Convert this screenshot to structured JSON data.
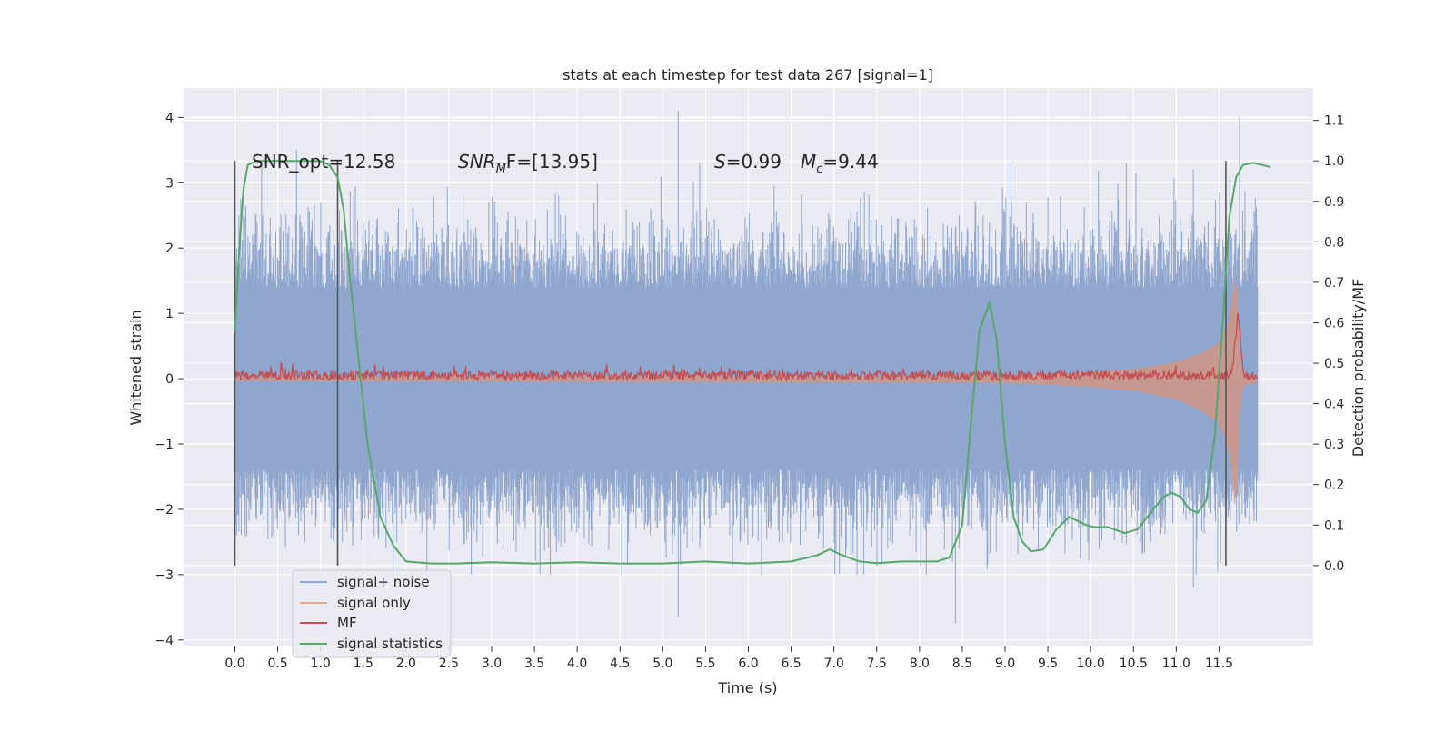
{
  "chart_data": {
    "type": "line",
    "title": "stats at each timestep for test data 267 [signal=1]",
    "xlabel": "Time (s)",
    "ylabel_left": "Whitened strain",
    "ylabel_right": "Detection probability/MF",
    "xlim": [
      -0.6,
      12.6
    ],
    "ylim_left": [
      -4.1,
      4.45
    ],
    "ylim_right": [
      -0.2,
      1.18
    ],
    "xticks": [
      "0.0",
      "0.5",
      "1.0",
      "1.5",
      "2.0",
      "2.5",
      "3.0",
      "3.5",
      "4.0",
      "4.5",
      "5.0",
      "5.5",
      "6.0",
      "6.5",
      "7.0",
      "7.5",
      "8.0",
      "8.5",
      "9.0",
      "9.5",
      "10.0",
      "10.5",
      "11.0",
      "11.5"
    ],
    "yticks_left": [
      "4",
      "3",
      "2",
      "1",
      "0",
      "−1",
      "−2",
      "−3",
      "−4"
    ],
    "yticks_right": [
      "1.1",
      "1.0",
      "0.9",
      "0.8",
      "0.7",
      "0.6",
      "0.5",
      "0.4",
      "0.3",
      "0.2",
      "0.1",
      "0.0"
    ],
    "grid": true,
    "legend_position": "lower-left",
    "annotations": {
      "snr_opt": "SNR_opt=12.58",
      "snr_mf_sym": "SNR",
      "snr_mf_sub": "M",
      "snr_mf_rest": "F=[13.95]",
      "s_sym": "S",
      "s_rest": "=0.99",
      "mc_sym": "M",
      "mc_sub": "c",
      "mc_rest": "=9.44"
    },
    "vertical_markers": [
      0.0,
      1.2,
      11.58
    ],
    "series": [
      {
        "name": "signal+ noise",
        "color": "#8fa6cf",
        "x_range": [
          0.0,
          11.95
        ],
        "band": [
          -1.4,
          1.4
        ],
        "extremes": [
          [
            0.72,
            3.5
          ],
          [
            5.18,
            4.1
          ],
          [
            11.74,
            4.0
          ],
          [
            5.18,
            -3.65
          ],
          [
            8.42,
            -3.75
          ],
          [
            11.2,
            -3.2
          ],
          [
            1.85,
            -3.0
          ]
        ]
      },
      {
        "name": "signal only",
        "color": "#dd8452",
        "x": [
          0.0,
          9.0,
          10.0,
          10.5,
          11.0,
          11.3,
          11.5,
          11.62,
          11.7,
          11.75,
          11.8,
          11.95
        ],
        "envelope": [
          0.03,
          0.05,
          0.1,
          0.15,
          0.25,
          0.4,
          0.55,
          0.9,
          1.7,
          0.2,
          0.08,
          0.05
        ]
      },
      {
        "name": "MF",
        "color": "#c44e52",
        "x_range": [
          0.0,
          11.95
        ],
        "baseline": 0.05,
        "amplitude": 0.14,
        "peak": [
          11.72,
          1.0
        ]
      },
      {
        "name": "signal statistics",
        "color": "#55a868",
        "x": [
          0.0,
          0.05,
          0.1,
          0.15,
          0.25,
          0.4,
          0.6,
          0.8,
          1.0,
          1.1,
          1.2,
          1.27,
          1.35,
          1.45,
          1.55,
          1.7,
          1.85,
          2.0,
          2.3,
          2.6,
          3.0,
          3.5,
          4.0,
          4.5,
          5.0,
          5.5,
          6.0,
          6.5,
          6.8,
          6.95,
          7.1,
          7.3,
          7.5,
          7.8,
          8.0,
          8.2,
          8.35,
          8.5,
          8.6,
          8.7,
          8.82,
          8.9,
          9.0,
          9.1,
          9.2,
          9.3,
          9.45,
          9.6,
          9.75,
          9.85,
          9.95,
          10.05,
          10.2,
          10.4,
          10.55,
          10.7,
          10.85,
          10.95,
          11.05,
          11.15,
          11.25,
          11.35,
          11.45,
          11.55,
          11.62,
          11.7,
          11.78,
          11.9,
          12.0,
          12.1
        ],
        "y": [
          0.58,
          0.78,
          0.93,
          0.99,
          1.0,
          1.0,
          1.0,
          1.0,
          1.0,
          0.99,
          0.96,
          0.88,
          0.7,
          0.5,
          0.3,
          0.12,
          0.05,
          0.01,
          0.005,
          0.005,
          0.008,
          0.005,
          0.008,
          0.005,
          0.005,
          0.01,
          0.005,
          0.01,
          0.025,
          0.04,
          0.025,
          0.01,
          0.006,
          0.01,
          0.01,
          0.01,
          0.02,
          0.1,
          0.35,
          0.58,
          0.65,
          0.56,
          0.3,
          0.12,
          0.06,
          0.035,
          0.04,
          0.09,
          0.12,
          0.11,
          0.1,
          0.095,
          0.095,
          0.08,
          0.09,
          0.13,
          0.17,
          0.18,
          0.17,
          0.14,
          0.13,
          0.16,
          0.32,
          0.62,
          0.86,
          0.96,
          0.99,
          0.995,
          0.99,
          0.985
        ]
      }
    ]
  }
}
